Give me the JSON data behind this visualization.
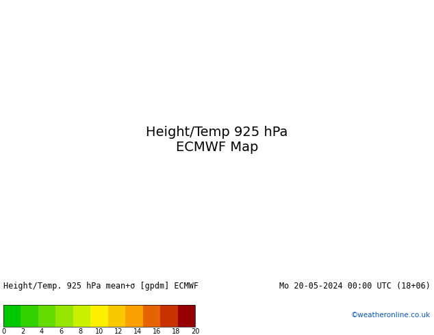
{
  "title_left": "Height/Temp. 925 hPa mean+σ [gpdm] ECMWF",
  "title_right": "Mo 20-05-2024 00:00 UTC (18+06)",
  "credit": "©weatheronline.co.uk",
  "colorbar_ticks": [
    0,
    2,
    4,
    6,
    8,
    10,
    12,
    14,
    16,
    18,
    20
  ],
  "colorbar_colors": [
    "#00c800",
    "#32d200",
    "#64dc00",
    "#96e600",
    "#c8f000",
    "#faf000",
    "#fac800",
    "#faa000",
    "#e66400",
    "#c83200",
    "#960000"
  ],
  "map_bg_green": "#00c800",
  "contour_color": "#000000",
  "coastline_color": "#aaaaaa",
  "title_fontsize": 9,
  "credit_color": "#0055cc",
  "bottom_bar_color": "#000000",
  "fig_width": 6.34,
  "fig_height": 4.9
}
